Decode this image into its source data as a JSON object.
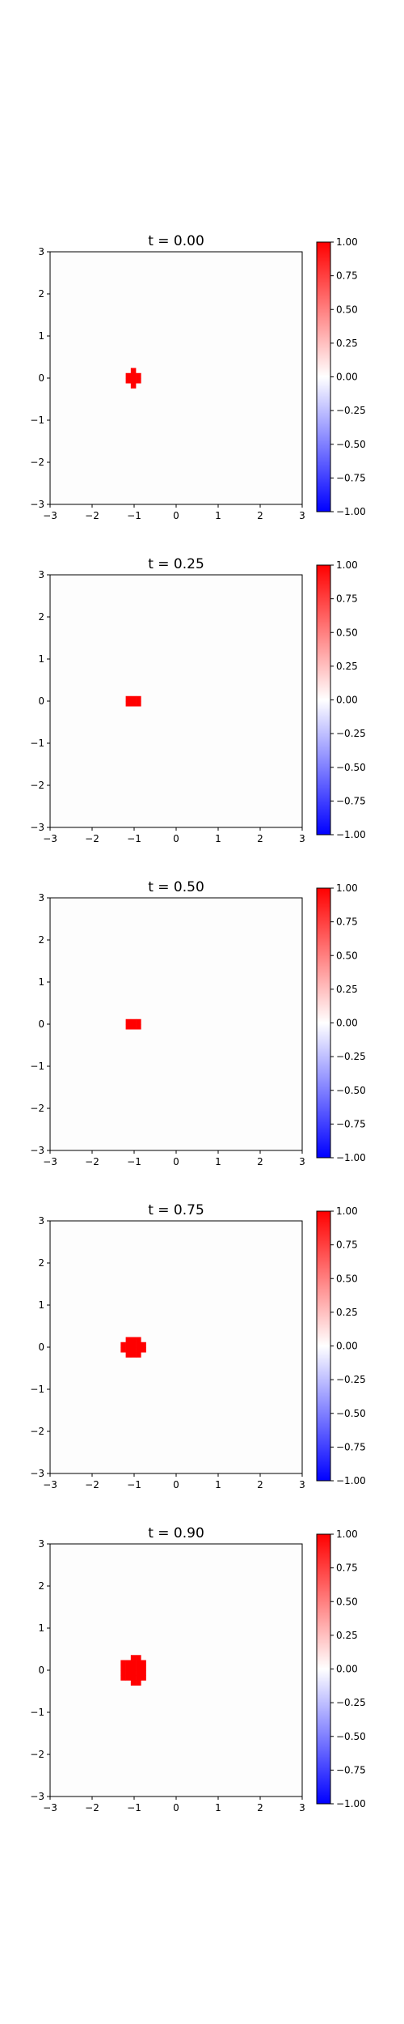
{
  "chart_data": [
    {
      "type": "heatmap",
      "title": "t = 0.00",
      "xlim": [
        -3,
        3
      ],
      "ylim": [
        -3,
        3
      ],
      "xticks": [
        "−3",
        "−2",
        "−1",
        "0",
        "1",
        "2",
        "3"
      ],
      "yticks": [
        "3",
        "2",
        "1",
        "0",
        "−1",
        "−2",
        "−3"
      ],
      "blob": {
        "cx": -1.0,
        "cy": 0.0,
        "r": 0.2,
        "value": 1.0
      },
      "background_value": 0.0,
      "grid": false,
      "colorbar": {
        "min": -1.0,
        "max": 1.0,
        "colormap": "bwr",
        "ticks": [
          "1.00",
          "0.75",
          "0.50",
          "0.25",
          "0.00",
          "−0.25",
          "−0.50",
          "−0.75",
          "−1.00"
        ]
      }
    },
    {
      "type": "heatmap",
      "title": "t = 0.25",
      "xlim": [
        -3,
        3
      ],
      "ylim": [
        -3,
        3
      ],
      "xticks": [
        "−3",
        "−2",
        "−1",
        "0",
        "1",
        "2",
        "3"
      ],
      "yticks": [
        "3",
        "2",
        "1",
        "0",
        "−1",
        "−2",
        "−3"
      ],
      "blob": {
        "cx": -1.0,
        "cy": 0.0,
        "r": 0.18,
        "value": 1.0
      },
      "background_value": 0.0,
      "grid": false,
      "colorbar": {
        "min": -1.0,
        "max": 1.0,
        "colormap": "bwr",
        "ticks": [
          "1.00",
          "0.75",
          "0.50",
          "0.25",
          "0.00",
          "−0.25",
          "−0.50",
          "−0.75",
          "−1.00"
        ]
      }
    },
    {
      "type": "heatmap",
      "title": "t = 0.50",
      "xlim": [
        -3,
        3
      ],
      "ylim": [
        -3,
        3
      ],
      "xticks": [
        "−3",
        "−2",
        "−1",
        "0",
        "1",
        "2",
        "3"
      ],
      "yticks": [
        "3",
        "2",
        "1",
        "0",
        "−1",
        "−2",
        "−3"
      ],
      "blob": {
        "cx": -1.0,
        "cy": 0.0,
        "r": 0.18,
        "value": 1.0
      },
      "background_value": 0.0,
      "grid": false,
      "colorbar": {
        "min": -1.0,
        "max": 1.0,
        "colormap": "bwr",
        "ticks": [
          "1.00",
          "0.75",
          "0.50",
          "0.25",
          "0.00",
          "−0.25",
          "−0.50",
          "−0.75",
          "−1.00"
        ]
      }
    },
    {
      "type": "heatmap",
      "title": "t = 0.75",
      "xlim": [
        -3,
        3
      ],
      "ylim": [
        -3,
        3
      ],
      "xticks": [
        "−3",
        "−2",
        "−1",
        "0",
        "1",
        "2",
        "3"
      ],
      "yticks": [
        "3",
        "2",
        "1",
        "0",
        "−1",
        "−2",
        "−3"
      ],
      "blob": {
        "cx": -1.0,
        "cy": 0.0,
        "r": 0.28,
        "value": 1.0
      },
      "background_value": 0.0,
      "grid": false,
      "colorbar": {
        "min": -1.0,
        "max": 1.0,
        "colormap": "bwr",
        "ticks": [
          "1.00",
          "0.75",
          "0.50",
          "0.25",
          "0.00",
          "−0.25",
          "−0.50",
          "−0.75",
          "−1.00"
        ]
      }
    },
    {
      "type": "heatmap",
      "title": "t = 0.90",
      "xlim": [
        -3,
        3
      ],
      "ylim": [
        -3,
        3
      ],
      "xticks": [
        "−3",
        "−2",
        "−1",
        "0",
        "1",
        "2",
        "3"
      ],
      "yticks": [
        "3",
        "2",
        "1",
        "0",
        "−1",
        "−2",
        "−3"
      ],
      "blob": {
        "cx": -1.0,
        "cy": 0.0,
        "r": 0.33,
        "value": 1.0
      },
      "background_value": 0.0,
      "grid": false,
      "colorbar": {
        "min": -1.0,
        "max": 1.0,
        "colormap": "bwr",
        "ticks": [
          "1.00",
          "0.75",
          "0.50",
          "0.25",
          "0.00",
          "−0.25",
          "−0.50",
          "−0.75",
          "−1.00"
        ]
      }
    }
  ]
}
